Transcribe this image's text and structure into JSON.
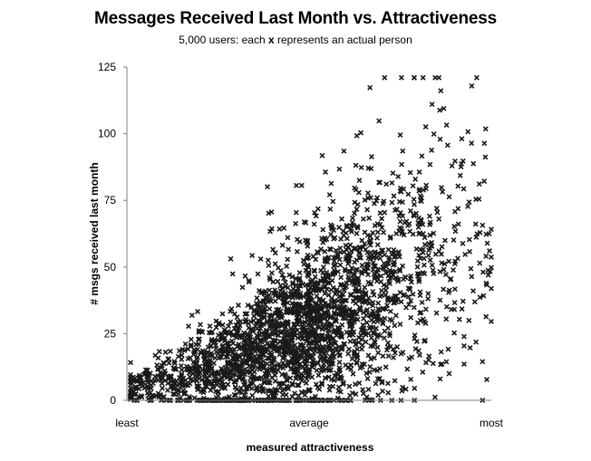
{
  "chart_data": {
    "type": "scatter",
    "title": "Messages Received Last Month vs. Attractiveness",
    "subtitle_before": "5,000 users: each",
    "subtitle_marker": "x",
    "subtitle_after": "represents an actual person",
    "xlabel": "measured attractiveness",
    "ylabel": "# msgs received last month",
    "x_tick_labels": [
      "least",
      "average",
      "most"
    ],
    "x_range": [
      "least",
      "most"
    ],
    "ylim": [
      0,
      125
    ],
    "y_ticks": [
      0,
      25,
      50,
      75,
      100,
      125
    ],
    "grid": false,
    "legend": "none",
    "marker": "x",
    "marker_color": "#1a1a1a",
    "n_points": 5000,
    "points_note": "individual points approximated: dense cloud rising from near 0 at least-attractive to ~50-100 at most-attractive"
  }
}
